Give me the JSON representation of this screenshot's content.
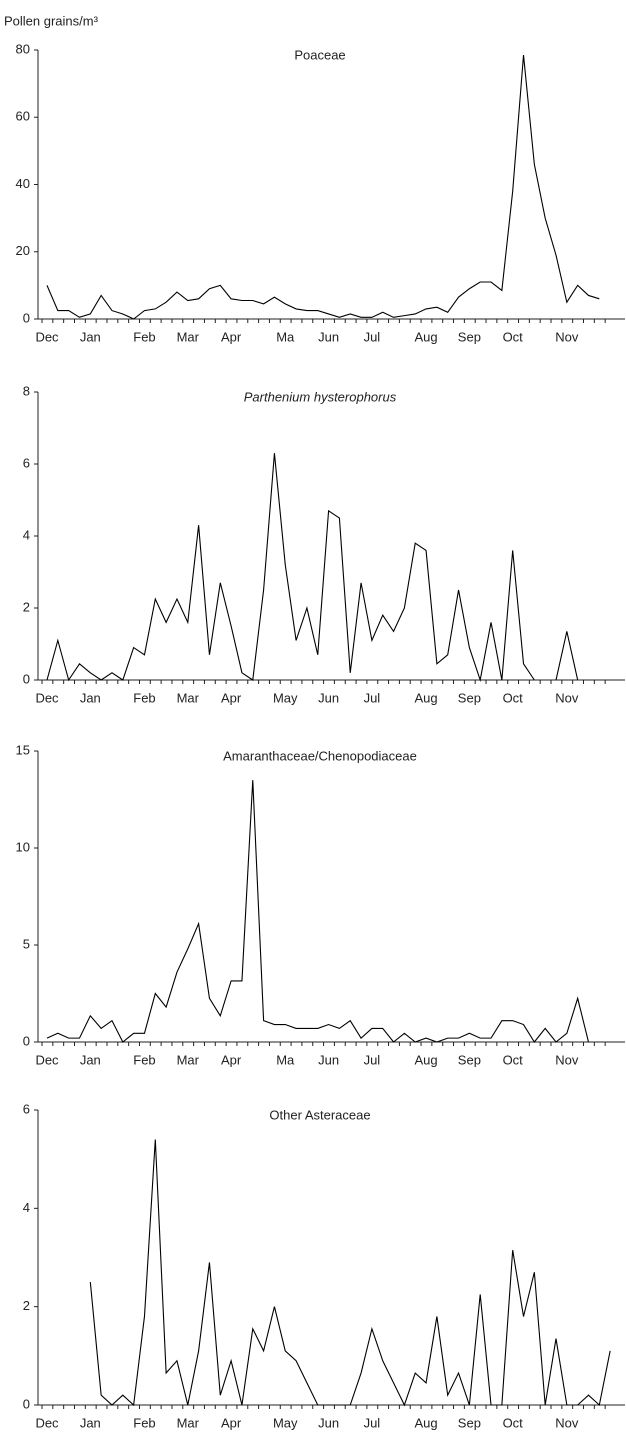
{
  "chart_data": [
    {
      "type": "line",
      "title": "Poaceae",
      "y_label": "Pollen grains/m³",
      "color": "#000000",
      "categories": [
        "Dec",
        null,
        null,
        null,
        "Jan",
        null,
        null,
        null,
        null,
        "Feb",
        null,
        null,
        null,
        "Mar",
        null,
        null,
        null,
        "Apr",
        null,
        null,
        null,
        null,
        "Ma",
        null,
        null,
        null,
        "Jun",
        null,
        null,
        null,
        "Jul",
        null,
        null,
        null,
        null,
        "Aug",
        null,
        null,
        null,
        "Sep",
        null,
        null,
        null,
        "Oct",
        null,
        null,
        null,
        null,
        "Nov",
        null,
        null,
        null,
        null
      ],
      "values": [
        10,
        2.5,
        2.5,
        0.5,
        1.5,
        7,
        2.5,
        1.5,
        0,
        2.5,
        3,
        5,
        8,
        5.5,
        6,
        9,
        10,
        6,
        5.5,
        5.5,
        4.5,
        6.5,
        4.5,
        3,
        2.5,
        2.5,
        1.5,
        0.5,
        1.5,
        0.5,
        0.5,
        2,
        0.5,
        1,
        1.5,
        3,
        3.5,
        2,
        6.5,
        9,
        11,
        11,
        8.5,
        38,
        78.5,
        46,
        30,
        19,
        5,
        10,
        7,
        6,
        null
      ],
      "ylim": [
        0,
        80
      ],
      "yticks": [
        0,
        20,
        40,
        60,
        80
      ]
    },
    {
      "type": "line",
      "title": "Parthenium hysterophorus",
      "title_style": "italic",
      "color": "#000000",
      "categories": [
        "Dec",
        null,
        null,
        null,
        "Jan",
        null,
        null,
        null,
        null,
        "Feb",
        null,
        null,
        null,
        "Mar",
        null,
        null,
        null,
        "Apr",
        null,
        null,
        null,
        null,
        "May",
        null,
        null,
        null,
        "Jun",
        null,
        null,
        null,
        "Jul",
        null,
        null,
        null,
        null,
        "Aug",
        null,
        null,
        null,
        "Sep",
        null,
        null,
        null,
        "Oct",
        null,
        null,
        null,
        null,
        "Nov",
        null,
        null,
        null,
        null
      ],
      "values": [
        0,
        1.1,
        0,
        0.45,
        0.2,
        0,
        0.2,
        0,
        0.9,
        0.7,
        2.25,
        1.6,
        2.25,
        1.6,
        4.3,
        0.7,
        2.7,
        1.5,
        0.2,
        0,
        2.5,
        6.3,
        3.2,
        1.1,
        2.0,
        0.7,
        4.7,
        4.5,
        0.2,
        2.7,
        1.1,
        1.8,
        1.35,
        2.0,
        3.8,
        3.6,
        0.45,
        0.7,
        2.5,
        0.9,
        0,
        1.6,
        0,
        3.6,
        0.45,
        0,
        null,
        0,
        1.35,
        0,
        null,
        null,
        null
      ],
      "ylim": [
        0,
        8
      ],
      "yticks": [
        0,
        2,
        4,
        6,
        8
      ]
    },
    {
      "type": "line",
      "title": "Amaranthaceae/Chenopodiaceae",
      "color": "#000000",
      "categories": [
        "Dec",
        null,
        null,
        null,
        "Jan",
        null,
        null,
        null,
        null,
        "Feb",
        null,
        null,
        null,
        "Mar",
        null,
        null,
        null,
        "Apr",
        null,
        null,
        null,
        null,
        "Ma",
        null,
        null,
        null,
        "Jun",
        null,
        null,
        null,
        "Jul",
        null,
        null,
        null,
        null,
        "Aug",
        null,
        null,
        null,
        "Sep",
        null,
        null,
        null,
        "Oct",
        null,
        null,
        null,
        null,
        "Nov",
        null,
        null,
        null,
        null
      ],
      "values": [
        0.2,
        0.45,
        0.2,
        0.2,
        1.35,
        0.7,
        1.1,
        0,
        0.45,
        0.45,
        2.5,
        1.8,
        3.6,
        4.8,
        6.1,
        2.25,
        1.35,
        3.15,
        3.15,
        13.5,
        1.1,
        0.9,
        0.9,
        0.7,
        0.7,
        0.7,
        0.9,
        0.7,
        1.1,
        0.2,
        0.7,
        0.7,
        0,
        0.45,
        0,
        0.2,
        0,
        0.2,
        0.2,
        0.45,
        0.2,
        0.2,
        1.1,
        1.1,
        0.9,
        0,
        0.7,
        0,
        0.45,
        2.25,
        0,
        null,
        null
      ],
      "ylim": [
        0,
        15
      ],
      "yticks": [
        0,
        5,
        10,
        15
      ]
    },
    {
      "type": "line",
      "title": "Other  Asteraceae",
      "color": "#000000",
      "categories": [
        "Dec",
        null,
        null,
        null,
        "Jan",
        null,
        null,
        null,
        null,
        "Feb",
        null,
        null,
        null,
        "Mar",
        null,
        null,
        null,
        "Apr",
        null,
        null,
        null,
        null,
        "May",
        null,
        null,
        null,
        "Jun",
        null,
        null,
        null,
        "Jul",
        null,
        null,
        null,
        null,
        "Aug",
        null,
        null,
        null,
        "Sep",
        null,
        null,
        null,
        "Oct",
        null,
        null,
        null,
        null,
        "Nov",
        null,
        null,
        null,
        null
      ],
      "values": [
        null,
        null,
        null,
        null,
        2.5,
        0.2,
        0,
        0.2,
        0,
        1.8,
        5.4,
        0.65,
        0.9,
        0,
        1.1,
        2.9,
        0.2,
        0.9,
        0,
        1.55,
        1.1,
        2.0,
        1.1,
        0.9,
        0.45,
        0,
        0,
        0,
        0,
        0.65,
        1.55,
        0.9,
        0.45,
        0,
        0.65,
        0.45,
        1.8,
        0.2,
        0.65,
        0,
        2.25,
        0,
        0,
        3.15,
        1.8,
        2.7,
        0,
        1.35,
        0,
        0,
        0.2,
        0,
        1.1
      ],
      "ylim": [
        0,
        6
      ],
      "yticks": [
        0,
        2,
        4,
        6
      ]
    }
  ]
}
